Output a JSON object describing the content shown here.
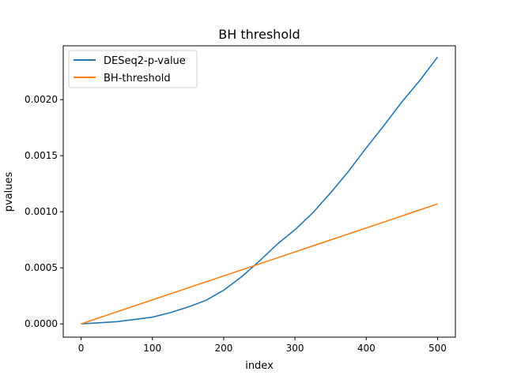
{
  "chart_data": {
    "type": "line",
    "title": "BH threshold",
    "xlabel": "index",
    "ylabel": "pvalues",
    "xlim": [
      -25,
      525
    ],
    "ylim": [
      -0.000118,
      0.00248
    ],
    "xticks": [
      0,
      100,
      200,
      300,
      400,
      500
    ],
    "xtick_labels": [
      "0",
      "100",
      "200",
      "300",
      "400",
      "500"
    ],
    "yticks": [
      0,
      0.0005,
      0.001,
      0.0015,
      0.002
    ],
    "ytick_labels": [
      "0.0000",
      "0.0005",
      "0.0010",
      "0.0015",
      "0.0020"
    ],
    "grid": false,
    "legend_position": "upper-left",
    "series": [
      {
        "name": "DESeq2-p-value",
        "color": "#1f77b4",
        "x": [
          0,
          25,
          50,
          75,
          100,
          125,
          150,
          175,
          200,
          225,
          250,
          275,
          300,
          325,
          350,
          375,
          400,
          425,
          450,
          475,
          500
        ],
        "y": [
          0,
          1e-05,
          2e-05,
          4e-05,
          6e-05,
          0.0001,
          0.00015,
          0.00021,
          0.0003,
          0.00042,
          0.00056,
          0.00071,
          0.00084,
          0.00099,
          0.00117,
          0.00136,
          0.00157,
          0.00177,
          0.00198,
          0.00217,
          0.00238
        ]
      },
      {
        "name": "BH-threshold",
        "color": "#ff7f0e",
        "x": [
          0,
          500
        ],
        "y": [
          0,
          0.00107
        ]
      }
    ]
  }
}
